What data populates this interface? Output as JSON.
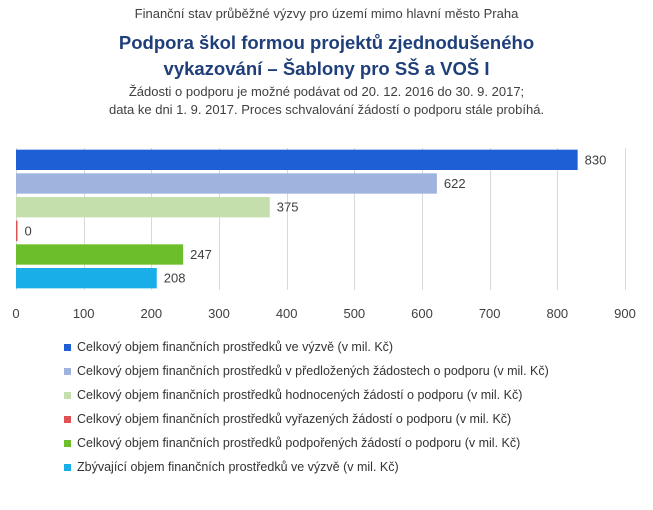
{
  "header": {
    "top_title": "Finanční stav průběžné výzvy pro území mimo hlavní město Praha",
    "main_title_line1": "Podpora škol formou projektů zjednodušeného",
    "main_title_line2": "vykazování – Šablony pro SŠ a VOŠ I",
    "subtitle_line1": "Žádosti o podporu je možné podávat od 20. 12. 2016 do 30. 9. 2017;",
    "subtitle_line2": "data ke dni 1. 9. 2017. Proces schvalování žádostí o podporu stále probíhá."
  },
  "chart_data": {
    "type": "bar",
    "orientation": "horizontal",
    "xlim": [
      0,
      900
    ],
    "ticks": [
      0,
      100,
      200,
      300,
      400,
      500,
      600,
      700,
      800,
      900
    ],
    "grid": true,
    "legend_position": "bottom",
    "series": [
      {
        "name": "Celkový objem finančních prostředků ve výzvě (v mil. Kč)",
        "value": 830,
        "label": "830",
        "color": "#1f5fd6"
      },
      {
        "name": "Celkový objem finančních prostředků v předložených žádostech o podporu (v mil. Kč)",
        "value": 622,
        "label": "622",
        "color": "#9fb3df"
      },
      {
        "name": "Celkový objem finančních prostředků hodnocených žádostí o podporu (v mil. Kč)",
        "value": 375,
        "label": "375",
        "color": "#c4dfab"
      },
      {
        "name": "Celkový objem finančních prostředků vyřazených žádostí o podporu (v mil. Kč)",
        "value": 0,
        "label": "0",
        "color": "#e05252"
      },
      {
        "name": "Celkový objem finančních prostředků podpořených žádostí o podporu (v mil. Kč)",
        "value": 247,
        "label": "247",
        "color": "#6cbf2a"
      },
      {
        "name": "Zbývající objem finančních prostředků ve výzvě (v mil. Kč)",
        "value": 208,
        "label": "208",
        "color": "#1aaee8"
      }
    ]
  }
}
